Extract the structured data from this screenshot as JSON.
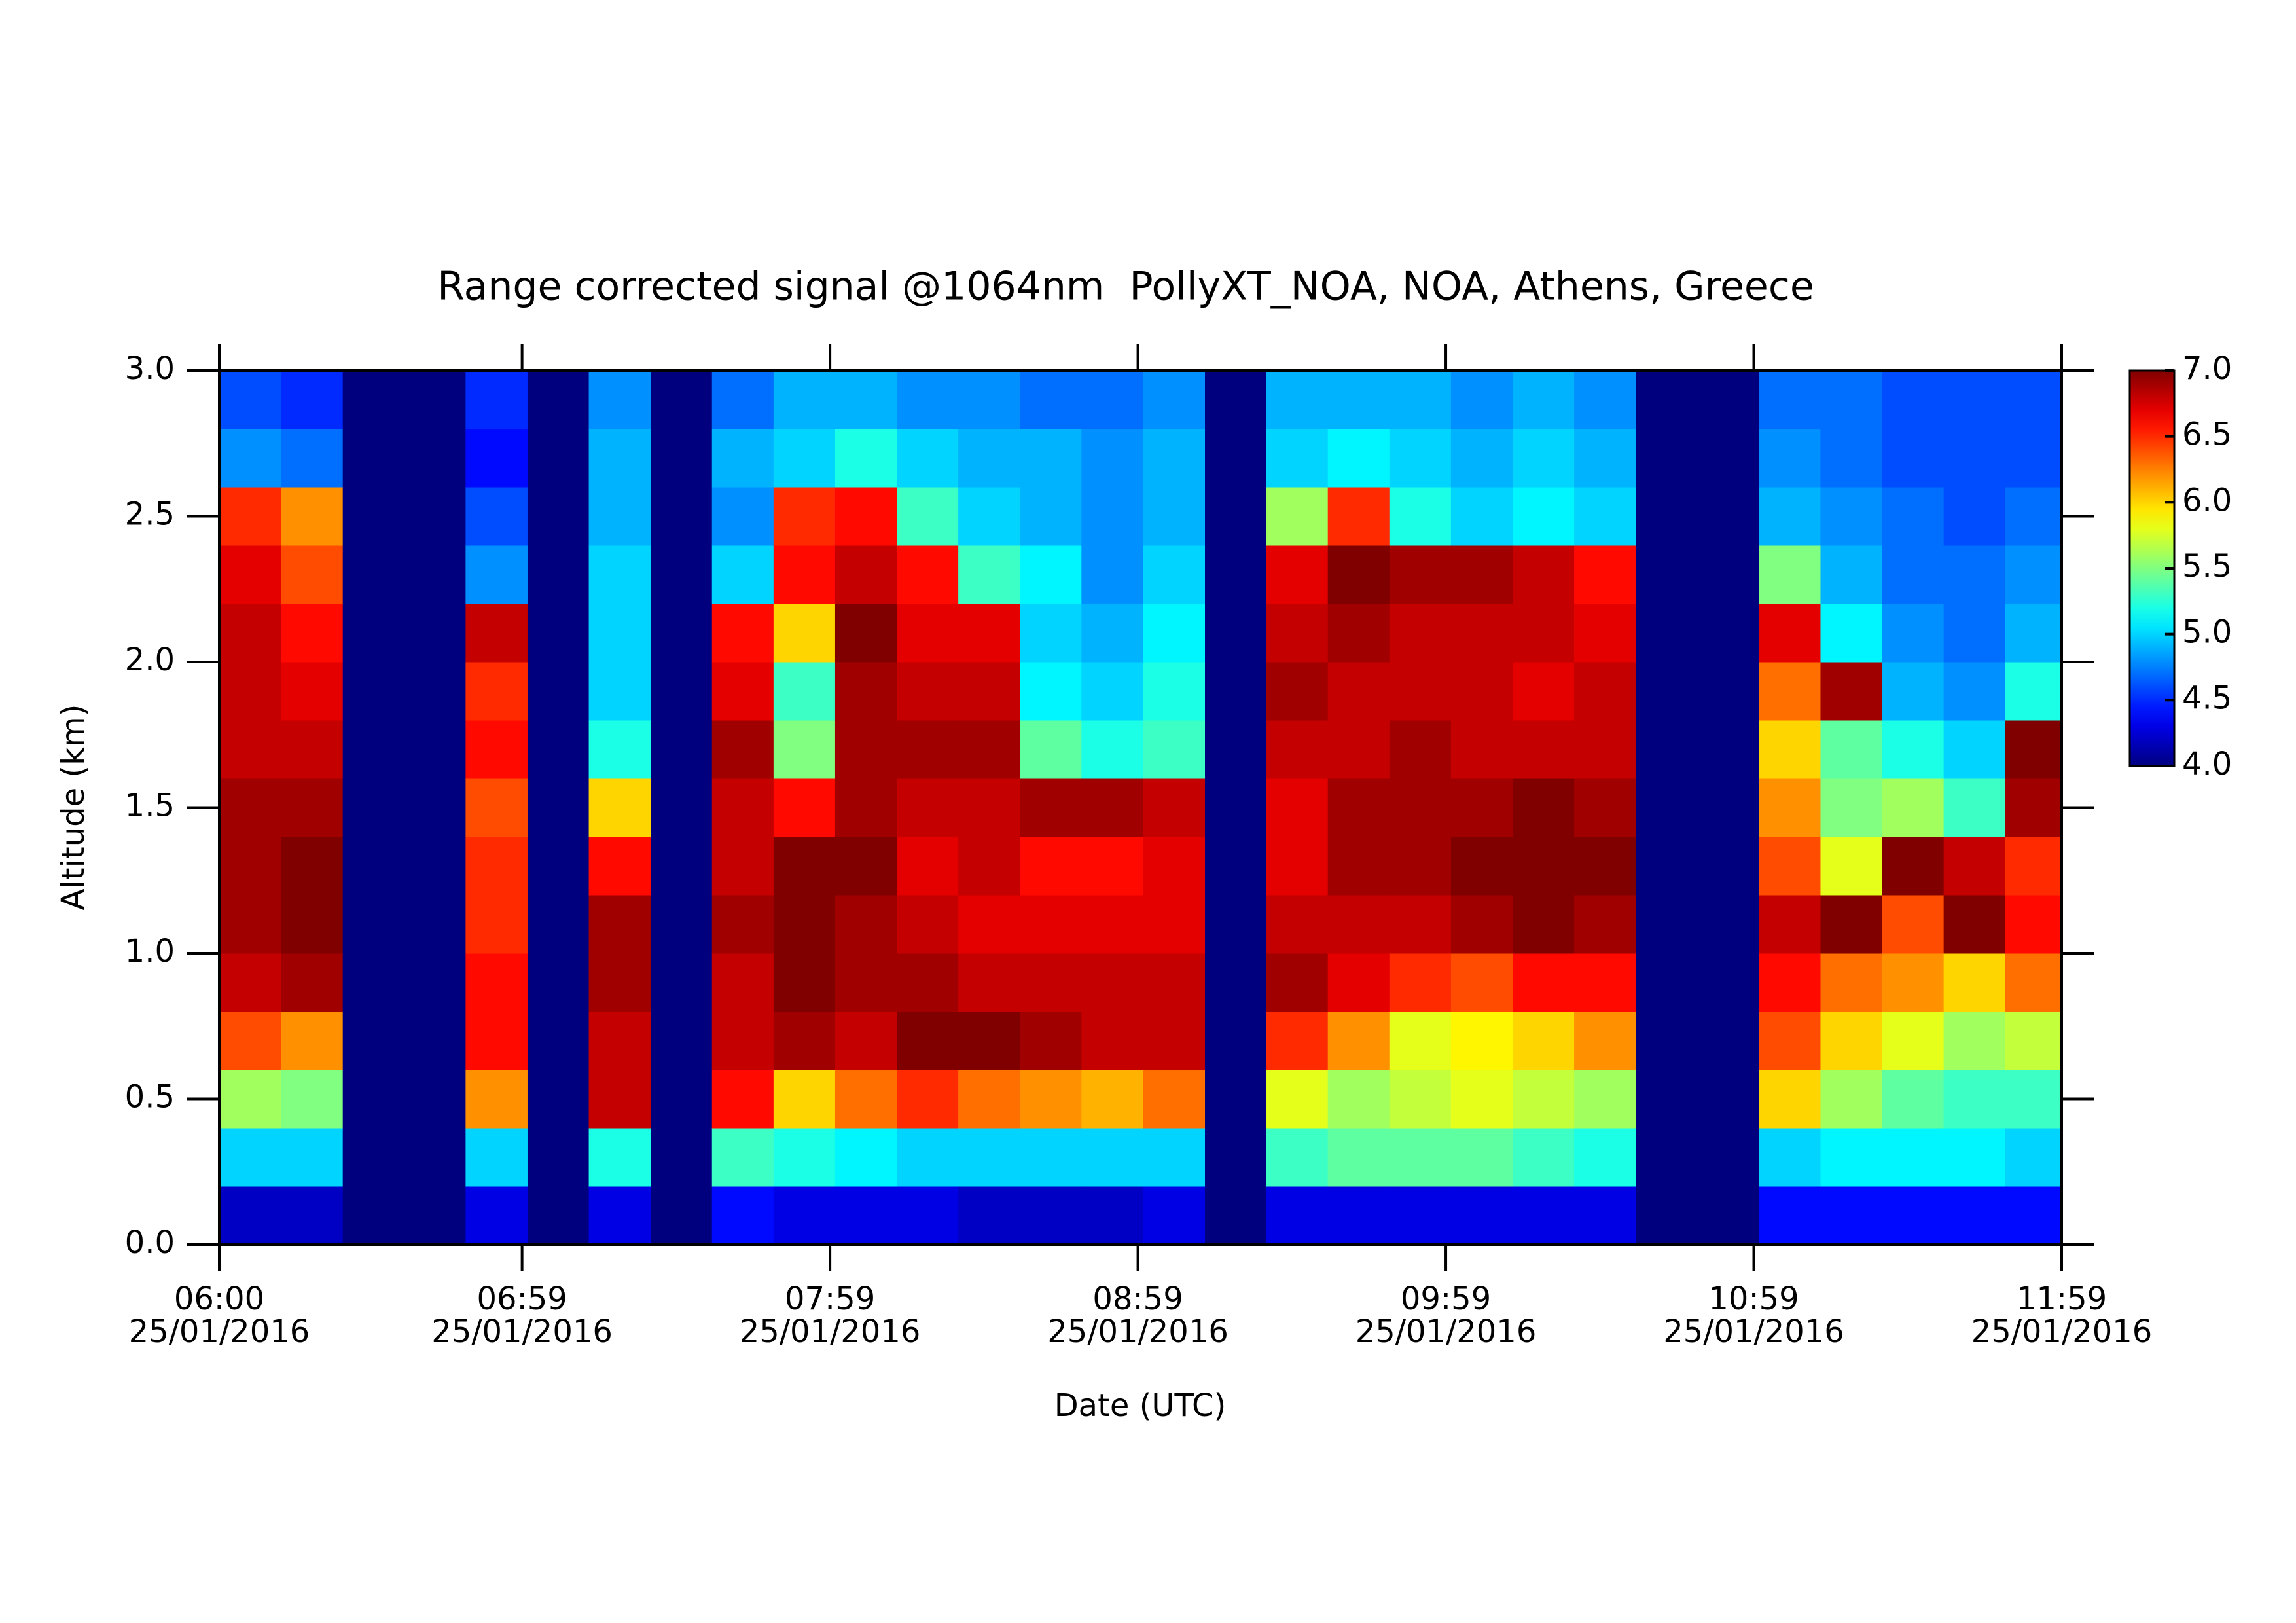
{
  "chart_data": {
    "type": "heatmap",
    "title": "Range corrected signal @1064nm  PollyXT_NOA, NOA, Athens, Greece",
    "x_label": "Date (UTC)",
    "y_label": "Altitude (km)",
    "x": [
      "06:00",
      "06:12",
      "06:24",
      "06:36",
      "06:48",
      "07:00",
      "07:12",
      "07:24",
      "07:36",
      "07:48",
      "08:00",
      "08:12",
      "08:24",
      "08:36",
      "08:48",
      "09:00",
      "09:12",
      "09:24",
      "09:36",
      "09:48",
      "10:00",
      "10:12",
      "10:24",
      "10:36",
      "10:48",
      "11:00",
      "11:12",
      "11:24",
      "11:36",
      "11:48"
    ],
    "y": [
      0,
      0.2,
      0.4,
      0.6,
      0.8,
      1.0,
      1.2,
      1.4,
      1.6,
      1.8,
      2.0,
      2.2,
      2.4,
      2.6,
      2.8
    ],
    "z": [
      [
        4.2,
        5.0,
        5.6,
        6.4,
        6.8,
        6.9,
        6.9,
        6.9,
        6.8,
        6.8,
        6.8,
        6.7,
        6.5,
        4.8,
        4.6
      ],
      [
        4.2,
        5.0,
        5.5,
        6.2,
        6.9,
        7.0,
        7.0,
        6.9,
        6.8,
        6.7,
        6.6,
        6.4,
        6.2,
        4.7,
        4.5
      ],
      [
        null,
        null,
        null,
        null,
        null,
        null,
        null,
        null,
        null,
        null,
        null,
        null,
        null,
        null,
        null
      ],
      [
        null,
        null,
        null,
        null,
        null,
        null,
        null,
        null,
        null,
        null,
        null,
        null,
        null,
        null,
        null
      ],
      [
        4.3,
        5.0,
        6.2,
        6.6,
        6.6,
        6.5,
        6.5,
        6.4,
        6.6,
        6.5,
        6.8,
        4.8,
        4.6,
        4.4,
        4.5
      ],
      [
        null,
        null,
        null,
        null,
        null,
        null,
        null,
        null,
        null,
        null,
        null,
        null,
        null,
        null,
        null
      ],
      [
        4.3,
        5.2,
        6.8,
        6.8,
        6.9,
        6.9,
        6.6,
        6.0,
        5.2,
        5.0,
        5.0,
        5.0,
        4.9,
        4.9,
        4.8
      ],
      [
        null,
        null,
        null,
        null,
        null,
        null,
        null,
        null,
        null,
        null,
        null,
        null,
        null,
        null,
        null
      ],
      [
        4.4,
        5.3,
        6.6,
        6.8,
        6.8,
        6.9,
        6.8,
        6.8,
        6.9,
        6.7,
        6.6,
        5.0,
        4.8,
        4.9,
        4.7
      ],
      [
        4.3,
        5.2,
        6.0,
        6.9,
        7.0,
        7.0,
        7.0,
        6.6,
        5.5,
        5.3,
        6.0,
        6.6,
        6.5,
        5.0,
        4.9
      ],
      [
        4.3,
        5.1,
        6.3,
        6.8,
        6.9,
        6.9,
        7.0,
        6.9,
        6.9,
        6.9,
        7.0,
        6.8,
        6.6,
        5.2,
        4.9
      ],
      [
        4.3,
        5.0,
        6.5,
        7.0,
        6.9,
        6.8,
        6.7,
        6.8,
        6.9,
        6.8,
        6.7,
        6.6,
        5.3,
        5.0,
        4.8
      ],
      [
        4.2,
        5.0,
        6.3,
        7.0,
        6.8,
        6.7,
        6.8,
        6.8,
        6.9,
        6.8,
        6.7,
        5.3,
        5.0,
        4.9,
        4.8
      ],
      [
        4.2,
        5.0,
        6.2,
        6.9,
        6.8,
        6.7,
        6.6,
        6.9,
        5.4,
        5.1,
        5.0,
        5.1,
        4.9,
        4.9,
        4.7
      ],
      [
        4.2,
        5.0,
        6.1,
        6.8,
        6.8,
        6.7,
        6.6,
        6.9,
        5.2,
        5.0,
        4.9,
        4.8,
        4.8,
        4.8,
        4.7
      ],
      [
        4.3,
        5.0,
        6.3,
        6.8,
        6.8,
        6.7,
        6.7,
        6.8,
        5.3,
        5.2,
        5.1,
        5.0,
        4.9,
        4.9,
        4.8
      ],
      [
        null,
        null,
        null,
        null,
        null,
        null,
        null,
        null,
        null,
        null,
        null,
        null,
        null,
        null,
        null
      ],
      [
        4.3,
        5.3,
        5.8,
        6.5,
        6.9,
        6.8,
        6.7,
        6.7,
        6.8,
        6.9,
        6.8,
        6.7,
        5.6,
        5.0,
        4.9
      ],
      [
        4.3,
        5.4,
        5.6,
        6.2,
        6.7,
        6.8,
        6.9,
        6.9,
        6.8,
        6.8,
        6.9,
        7.0,
        6.5,
        5.1,
        4.9
      ],
      [
        4.3,
        5.4,
        5.7,
        5.8,
        6.5,
        6.8,
        6.9,
        6.9,
        6.9,
        6.8,
        6.8,
        6.9,
        5.2,
        5.0,
        4.9
      ],
      [
        4.3,
        5.4,
        5.8,
        5.9,
        6.4,
        6.9,
        7.0,
        6.9,
        6.8,
        6.8,
        6.8,
        6.9,
        5.0,
        4.9,
        4.8
      ],
      [
        4.3,
        5.3,
        5.7,
        6.0,
        6.6,
        7.0,
        7.0,
        7.0,
        6.8,
        6.7,
        6.8,
        6.8,
        5.1,
        5.0,
        4.9
      ],
      [
        4.3,
        5.2,
        5.6,
        6.2,
        6.6,
        6.9,
        7.0,
        6.9,
        6.8,
        6.8,
        6.7,
        6.6,
        5.0,
        4.9,
        4.8
      ],
      [
        null,
        null,
        null,
        null,
        null,
        null,
        null,
        null,
        null,
        null,
        null,
        null,
        null,
        null,
        null
      ],
      [
        null,
        null,
        null,
        null,
        null,
        null,
        null,
        null,
        null,
        null,
        null,
        null,
        null,
        null,
        null
      ],
      [
        4.4,
        5.0,
        6.0,
        6.4,
        6.6,
        6.8,
        6.4,
        6.2,
        6.0,
        6.3,
        6.7,
        5.5,
        4.9,
        4.8,
        4.7
      ],
      [
        4.4,
        5.1,
        5.6,
        6.0,
        6.3,
        7.0,
        5.8,
        5.5,
        5.4,
        6.9,
        5.1,
        4.9,
        4.8,
        4.7,
        4.7
      ],
      [
        4.4,
        5.1,
        5.4,
        5.8,
        6.2,
        6.4,
        7.0,
        5.6,
        5.2,
        4.9,
        4.8,
        4.7,
        4.7,
        4.6,
        4.6
      ],
      [
        4.4,
        5.1,
        5.3,
        5.6,
        6.0,
        7.0,
        6.8,
        5.3,
        5.0,
        4.8,
        4.7,
        4.7,
        4.6,
        4.6,
        4.6
      ],
      [
        4.4,
        5.0,
        5.3,
        5.7,
        6.3,
        6.6,
        6.5,
        6.9,
        7.0,
        5.2,
        4.9,
        4.8,
        4.7,
        4.6,
        4.6
      ]
    ],
    "xlim": [
      "06:00",
      "11:59"
    ],
    "xticks": [
      "06:00",
      "06:59",
      "07:59",
      "08:59",
      "09:59",
      "10:59",
      "11:59"
    ],
    "xtick_date": "25/01/2016",
    "ylim": [
      0,
      3
    ],
    "yticks": [
      {
        "value": 0,
        "label": "0.0"
      },
      {
        "value": 0.5,
        "label": "0.5"
      },
      {
        "value": 1,
        "label": "1.0"
      },
      {
        "value": 1.5,
        "label": "1.5"
      },
      {
        "value": 2,
        "label": "2.0"
      },
      {
        "value": 2.5,
        "label": "2.5"
      },
      {
        "value": 3,
        "label": "3.0"
      }
    ],
    "colormap": "jet",
    "zlim": [
      4,
      7
    ],
    "zticks": [
      {
        "value": 4,
        "label": "4.0"
      },
      {
        "value": 4.5,
        "label": "4.5"
      },
      {
        "value": 5,
        "label": "5.0"
      },
      {
        "value": 5.5,
        "label": "5.5"
      },
      {
        "value": 6,
        "label": "6.0"
      },
      {
        "value": 6.5,
        "label": "6.5"
      },
      {
        "value": 7,
        "label": "7.0"
      }
    ]
  }
}
